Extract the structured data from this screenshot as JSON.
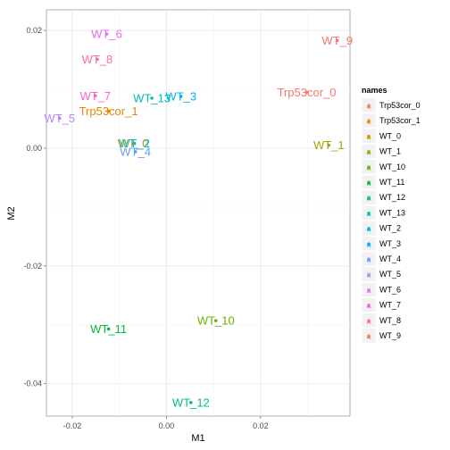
{
  "chart_data": {
    "type": "scatter",
    "xlabel": "M1",
    "ylabel": "M2",
    "xlim": [
      -0.0255,
      0.039
    ],
    "ylim": [
      -0.0455,
      0.0235
    ],
    "xticks": [
      -0.02,
      0.0,
      0.02
    ],
    "yticks": [
      0.02,
      0.0,
      -0.02,
      -0.04
    ],
    "xtick_labels": [
      "-0.02",
      "0.00",
      "0.02"
    ],
    "ytick_labels": [
      "0.02",
      "0.00",
      "-0.02",
      "-0.04"
    ],
    "grid": true,
    "legend": {
      "title": "names",
      "placement": "right"
    },
    "points": [
      {
        "name": "Trp53cor_0",
        "x": 0.0298,
        "y": 0.0095,
        "color": "#F8766D"
      },
      {
        "name": "Trp53cor_1",
        "x": -0.0123,
        "y": 0.0063,
        "color": "#E58700"
      },
      {
        "name": "WT_0",
        "x": -0.0071,
        "y": 0.0008,
        "color": "#C99800"
      },
      {
        "name": "WT_1",
        "x": 0.0345,
        "y": 0.0005,
        "color": "#A3A500"
      },
      {
        "name": "WT_10",
        "x": 0.0105,
        "y": -0.0293,
        "color": "#6BB100"
      },
      {
        "name": "WT_11",
        "x": -0.0123,
        "y": -0.0307,
        "color": "#00BA38"
      },
      {
        "name": "WT_12",
        "x": 0.0052,
        "y": -0.0432,
        "color": "#00BF7D"
      },
      {
        "name": "WT_13",
        "x": -0.0031,
        "y": 0.0085,
        "color": "#00C0AF"
      },
      {
        "name": "WT_2",
        "x": -0.0068,
        "y": 0.0008,
        "color": "#00BCD8"
      },
      {
        "name": "WT_3",
        "x": 0.0031,
        "y": 0.0088,
        "color": "#00B0F6"
      },
      {
        "name": "WT_4",
        "x": -0.0066,
        "y": -0.0006,
        "color": "#619CFF"
      },
      {
        "name": "WT_5",
        "x": -0.0227,
        "y": 0.0051,
        "color": "#B983FF"
      },
      {
        "name": "WT_6",
        "x": -0.0127,
        "y": 0.0194,
        "color": "#E76BF3"
      },
      {
        "name": "WT_7",
        "x": -0.0151,
        "y": 0.0089,
        "color": "#FD61D1"
      },
      {
        "name": "WT_8",
        "x": -0.0147,
        "y": 0.0151,
        "color": "#FF67A4"
      },
      {
        "name": "WT_9",
        "x": 0.0363,
        "y": 0.0183,
        "color": "#F8766D"
      }
    ]
  }
}
